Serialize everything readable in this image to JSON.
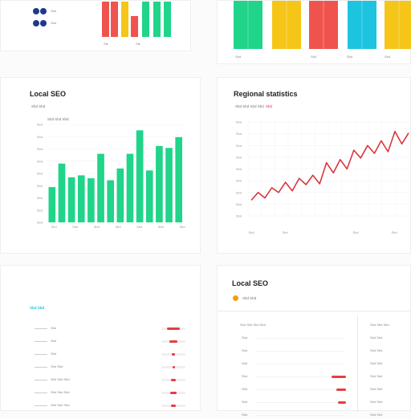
{
  "colors": {
    "green": "#20d48a",
    "red": "#f0534e",
    "yellow": "#f5c518",
    "cyan": "#1cc4e0",
    "navy": "#1e3a8a",
    "orange": "#f59e0b",
    "line_red": "#d9363e"
  },
  "top_left": {
    "legend": [
      "Sbd",
      "Sbd"
    ],
    "axis_label": "Stk",
    "chart_data": {
      "type": "bar",
      "categories": [
        "Sbd",
        "Sbd",
        "Sbd",
        "Sbd",
        "Sbd",
        "Sbd"
      ],
      "series": [
        {
          "values": [
            80,
            55,
            50,
            38,
            75,
            85
          ]
        }
      ]
    }
  },
  "top_right": {
    "tick_labels": [
      "Sbd",
      "Sbd",
      "Sbd",
      "Sbd"
    ],
    "chart_data": {
      "type": "bar",
      "categories": [
        "Sbd",
        "Sbd",
        "Sbd",
        "Sbd",
        "Sbd"
      ],
      "series": [
        {
          "values": [
            70,
            70,
            70,
            70,
            70
          ]
        }
      ]
    }
  },
  "local_seo": {
    "title": "Local SEO",
    "subtitle": "Sbd Sbd",
    "legend": "Sbd Sbd Sbd",
    "chart_data": {
      "type": "bar",
      "y_ticks": [
        "Sbd",
        "Sbd",
        "Sbd",
        "Sbd",
        "Sbd",
        "Sbd",
        "Sbd",
        "Sbd",
        "Sbd"
      ],
      "x_ticks": [
        "Sbd",
        "Sbd",
        "Sbd",
        "Sbd",
        "Sbd",
        "Sbd",
        "Sbd"
      ],
      "values": [
        36,
        60,
        46,
        48,
        45,
        70,
        43,
        55,
        70,
        94,
        53,
        78,
        76,
        87
      ],
      "ylim": [
        0,
        100
      ]
    }
  },
  "regional": {
    "title": "Regional statistics",
    "subtitle": "Sbd Sbd Sbd Sbd",
    "subtitle_accent": "Sbd",
    "chart_data": {
      "type": "line",
      "y_ticks": [
        "Sbd",
        "Sbd",
        "Sbd",
        "Sbd",
        "Sbd",
        "Sbd",
        "Sbd",
        "Sbd",
        "Sbd"
      ],
      "x_ticks": [
        "Sbd",
        "Sbd",
        "Sbd",
        "Sbd"
      ],
      "values": [
        20,
        30,
        23,
        36,
        30,
        43,
        32,
        48,
        40,
        52,
        41,
        68,
        55,
        72,
        60,
        84,
        74,
        90,
        80,
        96,
        82,
        108,
        92,
        106
      ],
      "ylim": [
        0,
        120
      ]
    }
  },
  "bottom_left": {
    "heading": "Sbd Sbd",
    "rows": [
      {
        "label": "Sbd",
        "value": 0.55
      },
      {
        "label": "Sbd",
        "value": 0.35
      },
      {
        "label": "Sbd",
        "value": 0.15
      },
      {
        "label": "Sbd Sbd",
        "value": 0.0
      },
      {
        "label": "Sbd Sbd Sbd",
        "value": 0.2
      },
      {
        "label": "Sbd Sbd Sbd",
        "value": 0.25
      },
      {
        "label": "Sbd Sbd Sbd",
        "value": 0.18
      }
    ]
  },
  "bottom_right": {
    "title": "Local SEO",
    "legend": "Sbd Sbd",
    "header_left": "Sbd Sbd Sbd Sbd",
    "header_right": "Sbd Sbd Sbd",
    "rows": [
      {
        "label": "Sbd",
        "right": "Sbd Sbd",
        "value": 0.0
      },
      {
        "label": "Sbd",
        "right": "Sbd Sbd",
        "value": 0.0
      },
      {
        "label": "Sbd",
        "right": "Sbd Sbd",
        "value": 0.0
      },
      {
        "label": "Sbd",
        "right": "Sbd Sbd",
        "value": 0.45
      },
      {
        "label": "Sbd",
        "right": "Sbd Sbd",
        "value": 0.3
      },
      {
        "label": "Sbd",
        "right": "Sbd Sbd",
        "value": 0.25
      },
      {
        "label": "Sbd",
        "right": "Sbd Sbd",
        "value": 0.0
      }
    ]
  }
}
